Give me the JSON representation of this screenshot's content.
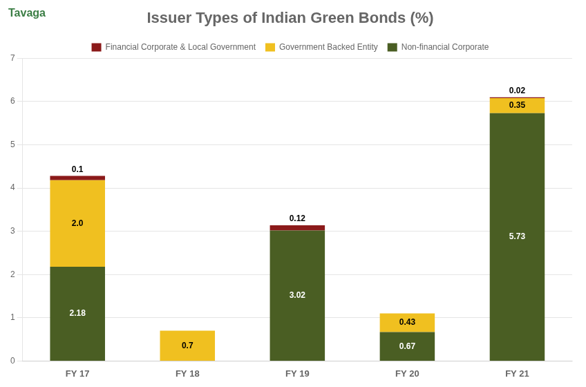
{
  "chart_data": {
    "type": "bar",
    "title": "Issuer Types of Indian Green Bonds (%)",
    "annotations": [
      "Tavaga"
    ],
    "categories": [
      "FY 17",
      "FY 18",
      "FY 19",
      "FY 20",
      "FY 21"
    ],
    "series": [
      {
        "name": "Non-financial Corporate",
        "color": "#4a5e23",
        "values": [
          2.18,
          0.0,
          3.02,
          0.67,
          5.73
        ],
        "value_labels": [
          "2.18",
          null,
          "3.02",
          "0.67",
          "5.73"
        ]
      },
      {
        "name": "Government Backed Entity",
        "color": "#f0c020",
        "values": [
          2.0,
          0.7,
          0.0,
          0.43,
          0.35
        ],
        "value_labels": [
          "2.0",
          "0.7",
          null,
          "0.43",
          "0.35"
        ]
      },
      {
        "name": "Financial Corporate & Local Government",
        "color": "#8b1a1a",
        "values": [
          0.1,
          0.0,
          0.12,
          0.0,
          0.02
        ],
        "value_labels": [
          "0.1",
          null,
          "0.12",
          null,
          "0.02"
        ]
      }
    ],
    "ylim": [
      0,
      7
    ],
    "yticks": [
      0,
      1,
      2,
      3,
      4,
      5,
      6,
      7
    ],
    "stacked": true,
    "grid": true,
    "legend": "top",
    "data_labels": true
  }
}
